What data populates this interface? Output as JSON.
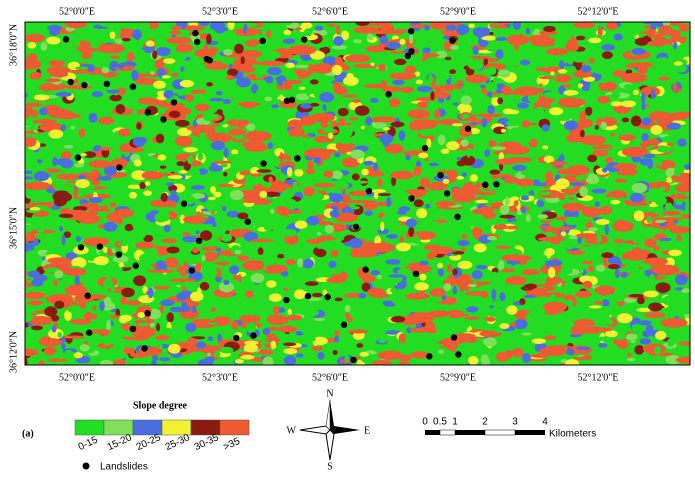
{
  "panel_label": "(a)",
  "map": {
    "top_labels": [
      "52°0'0\"E",
      "52°3'0\"E",
      "52°6'0\"E",
      "52°9'0\"E",
      "52°12'0\"E"
    ],
    "bottom_labels": [
      "52°0'0\"E",
      "52°3'0\"E",
      "52°6'0\"E",
      "52°9'0\"E",
      "52°12'0\"E"
    ],
    "left_labels": [
      "36°18'0\"N",
      "36°15'0\"N",
      "36°12'0\"N"
    ]
  },
  "legend": {
    "title": "Slope degree",
    "classes": [
      {
        "label": "0-15",
        "color": "#22dd22"
      },
      {
        "label": "15-20",
        "color": "#7fe05a"
      },
      {
        "label": "20-25",
        "color": "#4a6ee0"
      },
      {
        "label": "25-30",
        "color": "#f2f233"
      },
      {
        "label": "30-35",
        "color": "#8b1a10"
      },
      {
        "label": ">35",
        "color": "#f05a32"
      }
    ],
    "points_label": "Landslides"
  },
  "compass": {
    "n": "N",
    "e": "E",
    "s": "S",
    "w": "W"
  },
  "scale_bar": {
    "ticks": [
      "0",
      "0.5",
      "1",
      "2",
      "3",
      "4"
    ],
    "unit": "Kilometers"
  }
}
